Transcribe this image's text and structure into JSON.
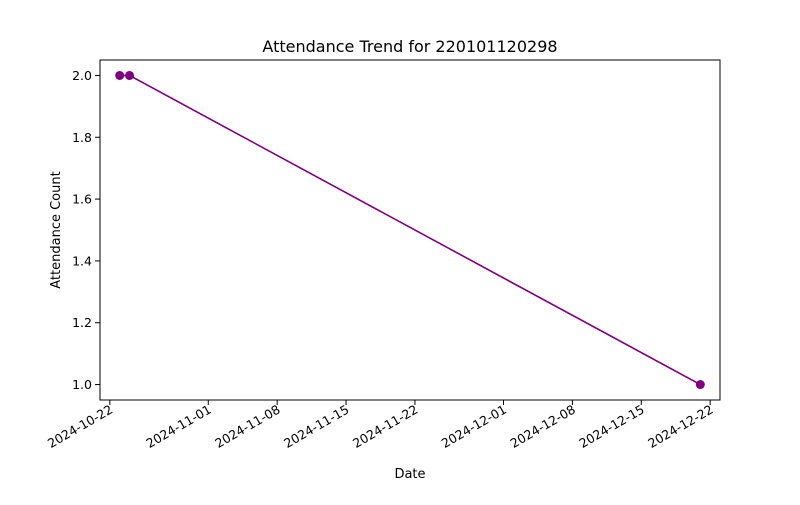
{
  "chart_data": {
    "type": "line",
    "title": "Attendance Trend for 220101120298",
    "xlabel": "Date",
    "ylabel": "Attendance Count",
    "x_ticks": [
      "2024-10-22",
      "2024-11-01",
      "2024-11-08",
      "2024-11-15",
      "2024-11-22",
      "2024-12-01",
      "2024-12-08",
      "2024-12-15",
      "2024-12-22"
    ],
    "y_ticks": [
      "1.0",
      "1.2",
      "1.4",
      "1.6",
      "1.8",
      "2.0"
    ],
    "xlim": [
      "2024-10-21",
      "2024-12-23"
    ],
    "ylim": [
      0.95,
      2.05
    ],
    "grid": false,
    "series": [
      {
        "color": "#800080",
        "marker": "circle",
        "points": [
          {
            "x": "2024-10-23",
            "y": 2
          },
          {
            "x": "2024-10-24",
            "y": 2
          },
          {
            "x": "2024-12-21",
            "y": 1
          }
        ]
      }
    ]
  }
}
